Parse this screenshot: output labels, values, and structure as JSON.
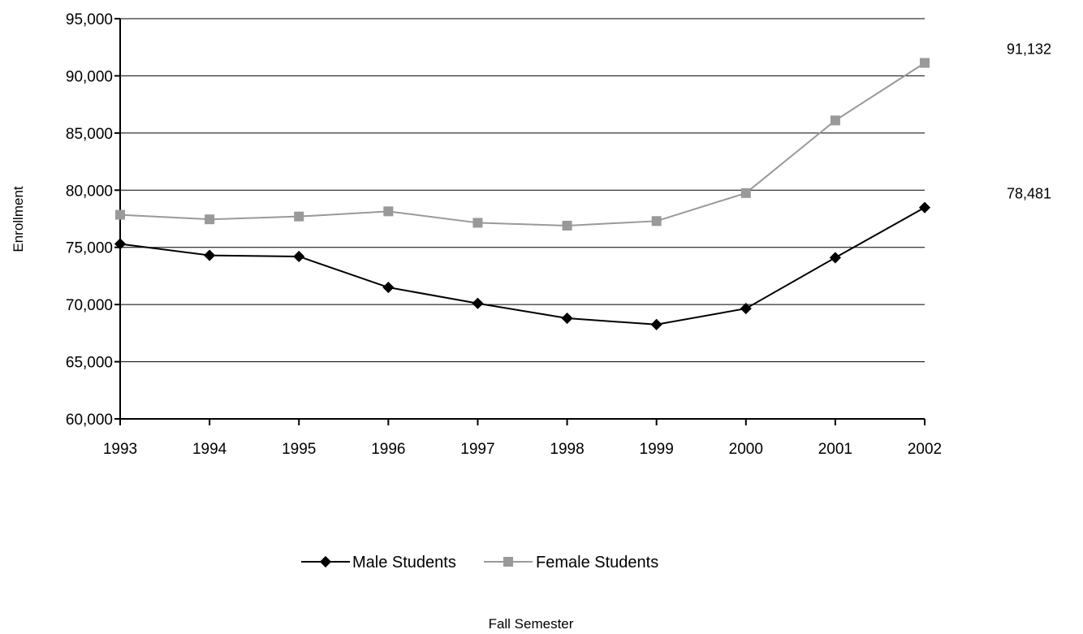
{
  "chart_data": {
    "type": "line",
    "title": "",
    "xlabel": "Fall Semester",
    "ylabel": "Enrollment",
    "x": [
      "1993",
      "1994",
      "1995",
      "1996",
      "1997",
      "1998",
      "1999",
      "2000",
      "2001",
      "2002"
    ],
    "ylim": [
      60000,
      95000
    ],
    "yticks": [
      60000,
      65000,
      70000,
      75000,
      80000,
      85000,
      90000,
      95000
    ],
    "ytick_labels": [
      "60,000",
      "65,000",
      "70,000",
      "75,000",
      "80,000",
      "85,000",
      "90,000",
      "95,000"
    ],
    "grid": true,
    "legend_position": "bottom",
    "series": [
      {
        "name": "Male Students",
        "color": "#000000",
        "marker": "diamond",
        "values": [
          75300,
          74300,
          74200,
          71500,
          70100,
          68800,
          68250,
          69650,
          74100,
          78481
        ]
      },
      {
        "name": "Female Students",
        "color": "#999999",
        "marker": "square",
        "values": [
          77850,
          77450,
          77700,
          78150,
          77150,
          76900,
          77300,
          79750,
          86100,
          91132
        ]
      }
    ],
    "annotations": [
      {
        "series": "Female Students",
        "text": "91,132"
      },
      {
        "series": "Male Students",
        "text": "78,481"
      }
    ]
  }
}
